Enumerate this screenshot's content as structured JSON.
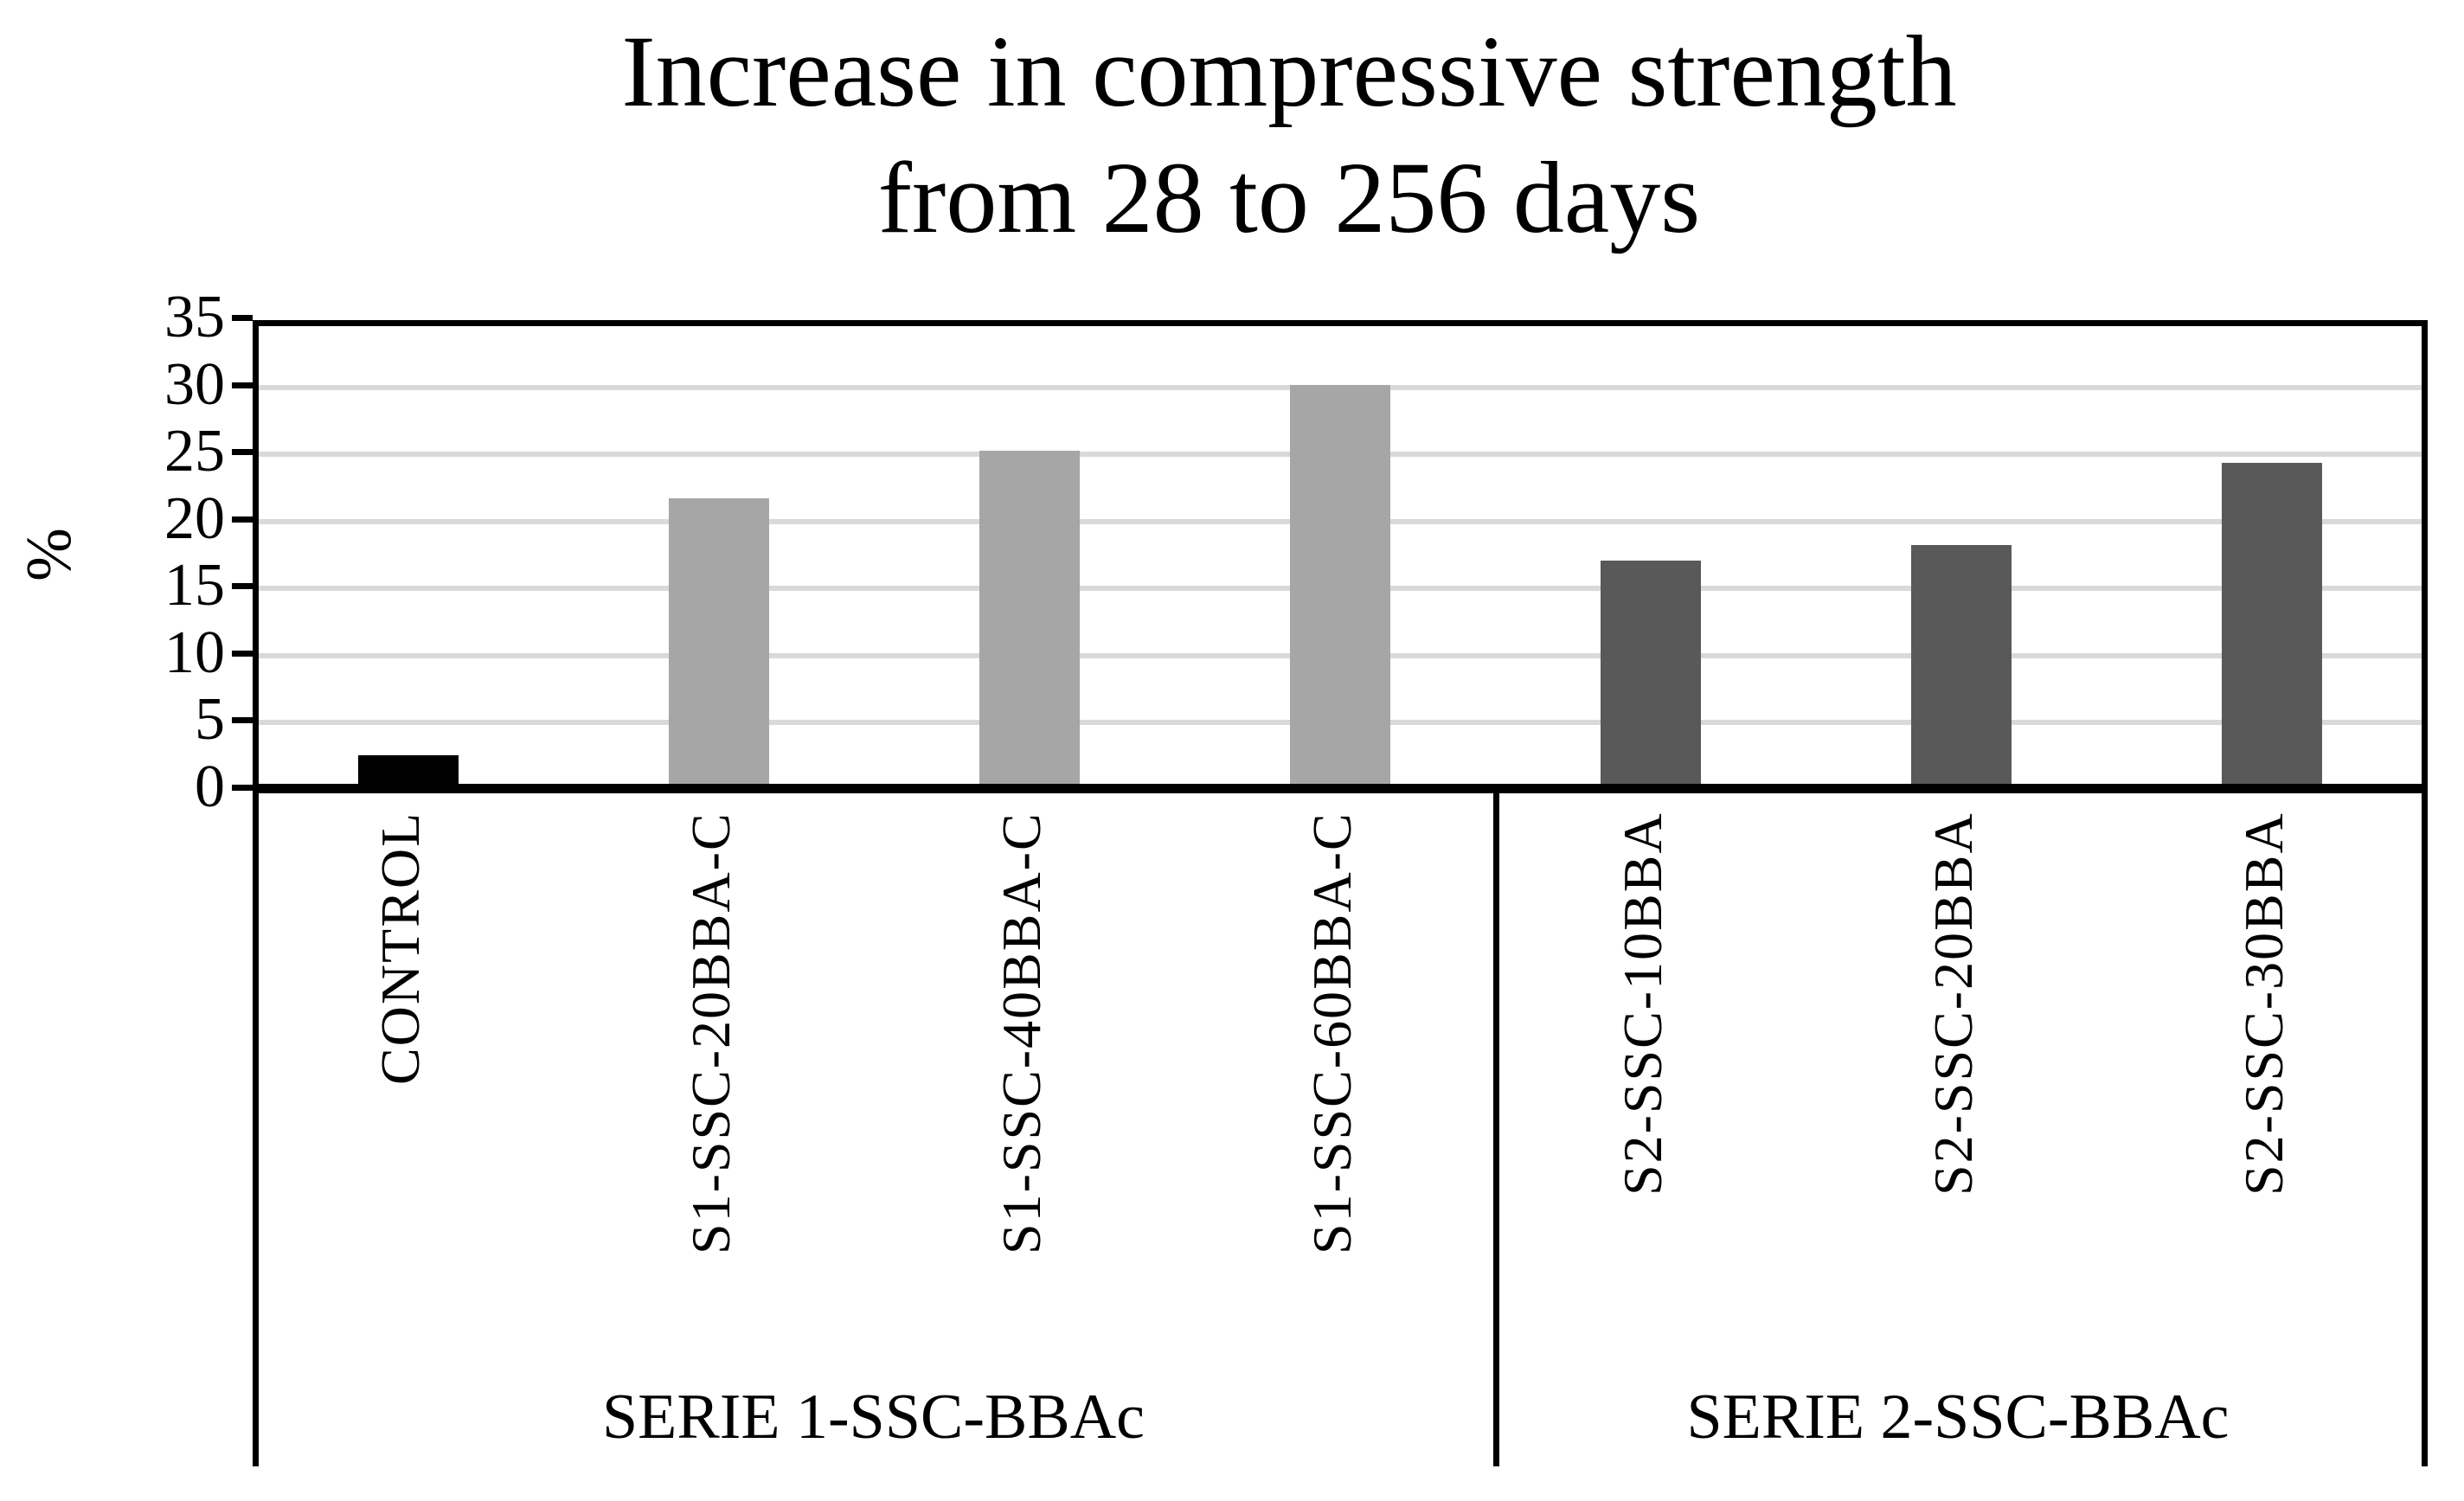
{
  "title": {
    "line1": "Increase in compressive strength",
    "line2": "from 28 to 256 days"
  },
  "chart_data": {
    "type": "bar",
    "title": "Increase in compressive strength from 28 to 256 days",
    "xlabel": "",
    "ylabel": "%",
    "ylim": [
      0,
      35
    ],
    "yticks": [
      0,
      5,
      10,
      15,
      20,
      25,
      30,
      35
    ],
    "grid": "horizontal gridlines every 5 units",
    "legend": "none",
    "categories": [
      "CONTROL",
      "S1-SSC-20BBA-C",
      "S1-SSC-40BBA-C",
      "S1-SSC-60BBA-C",
      "S2-SSC-10BBA",
      "S2-SSC-20BBA",
      "S2-SSC-30BBA"
    ],
    "values": [
      2.1,
      21.3,
      24.8,
      29.7,
      16.6,
      17.8,
      23.9
    ],
    "bar_colors": [
      "#000000",
      "#a6a6a6",
      "#a6a6a6",
      "#a6a6a6",
      "#595959",
      "#595959",
      "#595959"
    ],
    "groups": [
      {
        "label": "SERIE 1-SSC-BBAc",
        "category_span": [
          0,
          3
        ]
      },
      {
        "label": "SERIE 2-SSC-BBAc",
        "category_span": [
          4,
          6
        ]
      }
    ],
    "colors": {
      "control_bar": "#000000",
      "serie1_bar": "#a6a6a6",
      "serie2_bar": "#595959",
      "gridline": "#d9d9d9",
      "axis": "#000000",
      "background": "#ffffff"
    }
  }
}
